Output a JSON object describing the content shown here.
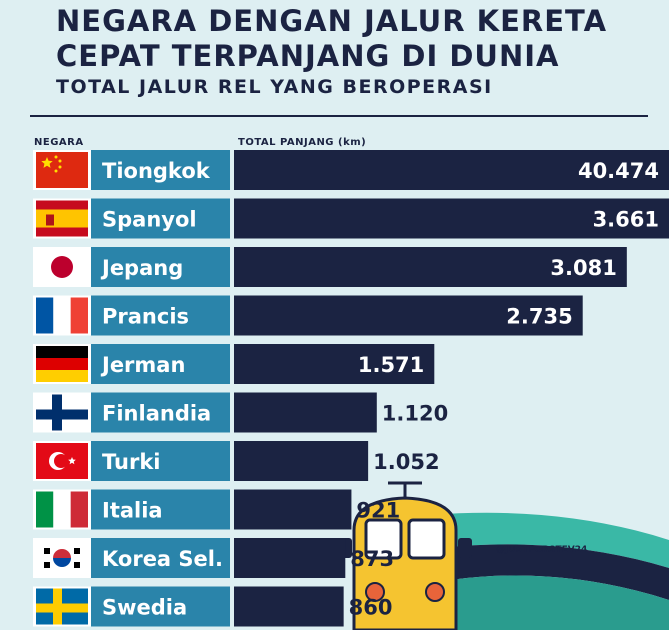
{
  "header": {
    "title": "NEGARA DENGAN JALUR KERETA CEPAT TERPANJANG DI DUNIA",
    "subtitle": "TOTAL JALUR REL YANG BEROPERASI"
  },
  "columns": {
    "country": "NEGARA",
    "total": "TOTAL PANJANG (km)"
  },
  "credit": "@JUSTFORSTEV24",
  "colors": {
    "bar": "#1b2342",
    "label_bg": "#2a84aa",
    "text_dark": "#1b2342",
    "train_body": "#f5c430",
    "track_teal": "#3ab8a6"
  },
  "chart_data": {
    "type": "bar",
    "orientation": "horizontal",
    "title": "NEGARA DENGAN JALUR KERETA CEPAT TERPANJANG DI DUNIA",
    "subtitle": "TOTAL JALUR REL YANG BEROPERASI",
    "xlabel": "TOTAL PANJANG (km)",
    "ylabel": "NEGARA",
    "categories": [
      "Tiongkok",
      "Spanyol",
      "Jepang",
      "Prancis",
      "Jerman",
      "Finlandia",
      "Turki",
      "Italia",
      "Korea Sel.",
      "Swedia"
    ],
    "values": [
      40474,
      3661,
      3081,
      2735,
      1571,
      1120,
      1052,
      921,
      873,
      860
    ],
    "value_labels": [
      "40.474",
      "3.661",
      "3.081",
      "2.735",
      "1.571",
      "1.120",
      "1.052",
      "921",
      "873",
      "860"
    ],
    "flags": [
      "china",
      "spain",
      "japan",
      "france",
      "germany",
      "finland",
      "turkey",
      "italy",
      "south-korea",
      "sweden"
    ],
    "note": "bar for Tiongkok is truncated at chart edge"
  }
}
